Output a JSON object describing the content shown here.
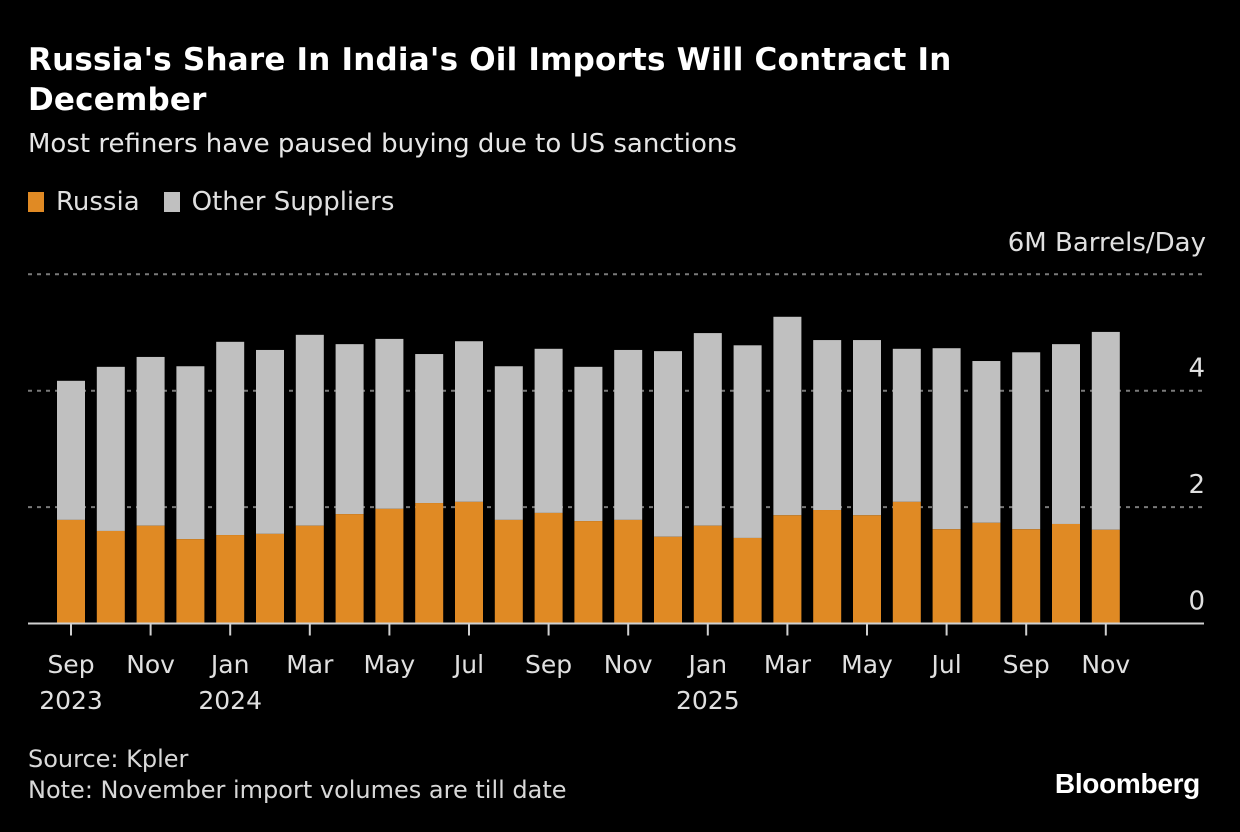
{
  "header": {
    "title": "Russia's Share In India's Oil Imports Will Contract In December",
    "subtitle": "Most refiners have paused buying due to US sanctions"
  },
  "legend": [
    {
      "label": "Russia",
      "color": "#e08a24"
    },
    {
      "label": "Other Suppliers",
      "color": "#c0c0c0"
    }
  ],
  "unit_label": "6M Barrels/Day",
  "footer": {
    "source": "Source: Kpler",
    "note": "Note: November import volumes are till date",
    "brand": "Bloomberg"
  },
  "chart_data": {
    "type": "bar",
    "stacked": true,
    "title": "Russia's Share In India's Oil Imports Will Contract In December",
    "subtitle": "Most refiners have paused buying due to US sanctions",
    "xlabel": "",
    "ylabel": "Million Barrels/Day",
    "ylim": [
      0,
      6
    ],
    "yticks": [
      0,
      2,
      4,
      6
    ],
    "ytick_labels": [
      "0",
      "2",
      "4",
      "6M Barrels/Day"
    ],
    "grid": true,
    "legend_position": "top-left",
    "categories": [
      "2023-09",
      "2023-10",
      "2023-11",
      "2023-12",
      "2024-01",
      "2024-02",
      "2024-03",
      "2024-04",
      "2024-05",
      "2024-06",
      "2024-07",
      "2024-08",
      "2024-09",
      "2024-10",
      "2024-11",
      "2024-12",
      "2025-01",
      "2025-02",
      "2025-03",
      "2025-04",
      "2025-05",
      "2025-06",
      "2025-07",
      "2025-08",
      "2025-09",
      "2025-10",
      "2025-11"
    ],
    "xtick_labels": [
      {
        "index": 0,
        "month": "Sep",
        "year": "2023"
      },
      {
        "index": 2,
        "month": "Nov",
        "year": ""
      },
      {
        "index": 4,
        "month": "Jan",
        "year": "2024"
      },
      {
        "index": 6,
        "month": "Mar",
        "year": ""
      },
      {
        "index": 8,
        "month": "May",
        "year": ""
      },
      {
        "index": 10,
        "month": "Jul",
        "year": ""
      },
      {
        "index": 12,
        "month": "Sep",
        "year": ""
      },
      {
        "index": 14,
        "month": "Nov",
        "year": ""
      },
      {
        "index": 16,
        "month": "Jan",
        "year": "2025"
      },
      {
        "index": 18,
        "month": "Mar",
        "year": ""
      },
      {
        "index": 20,
        "month": "May",
        "year": ""
      },
      {
        "index": 22,
        "month": "Jul",
        "year": ""
      },
      {
        "index": 24,
        "month": "Sep",
        "year": ""
      },
      {
        "index": 26,
        "month": "Nov",
        "year": ""
      }
    ],
    "series": [
      {
        "name": "Russia",
        "color": "#e08a24",
        "values": [
          1.78,
          1.59,
          1.68,
          1.45,
          1.52,
          1.54,
          1.68,
          1.88,
          1.97,
          2.07,
          2.09,
          1.78,
          1.9,
          1.76,
          1.78,
          1.49,
          1.68,
          1.47,
          1.86,
          1.95,
          1.86,
          2.09,
          1.62,
          1.73,
          1.62,
          1.71,
          1.61
        ]
      },
      {
        "name": "Other Suppliers",
        "color": "#c0c0c0",
        "values": [
          2.39,
          2.82,
          2.9,
          2.97,
          3.32,
          3.16,
          3.28,
          2.92,
          2.92,
          2.56,
          2.76,
          2.64,
          2.82,
          2.65,
          2.92,
          3.19,
          3.31,
          3.31,
          3.41,
          2.92,
          3.01,
          2.63,
          3.11,
          2.78,
          3.04,
          3.09,
          3.4
        ]
      }
    ]
  }
}
